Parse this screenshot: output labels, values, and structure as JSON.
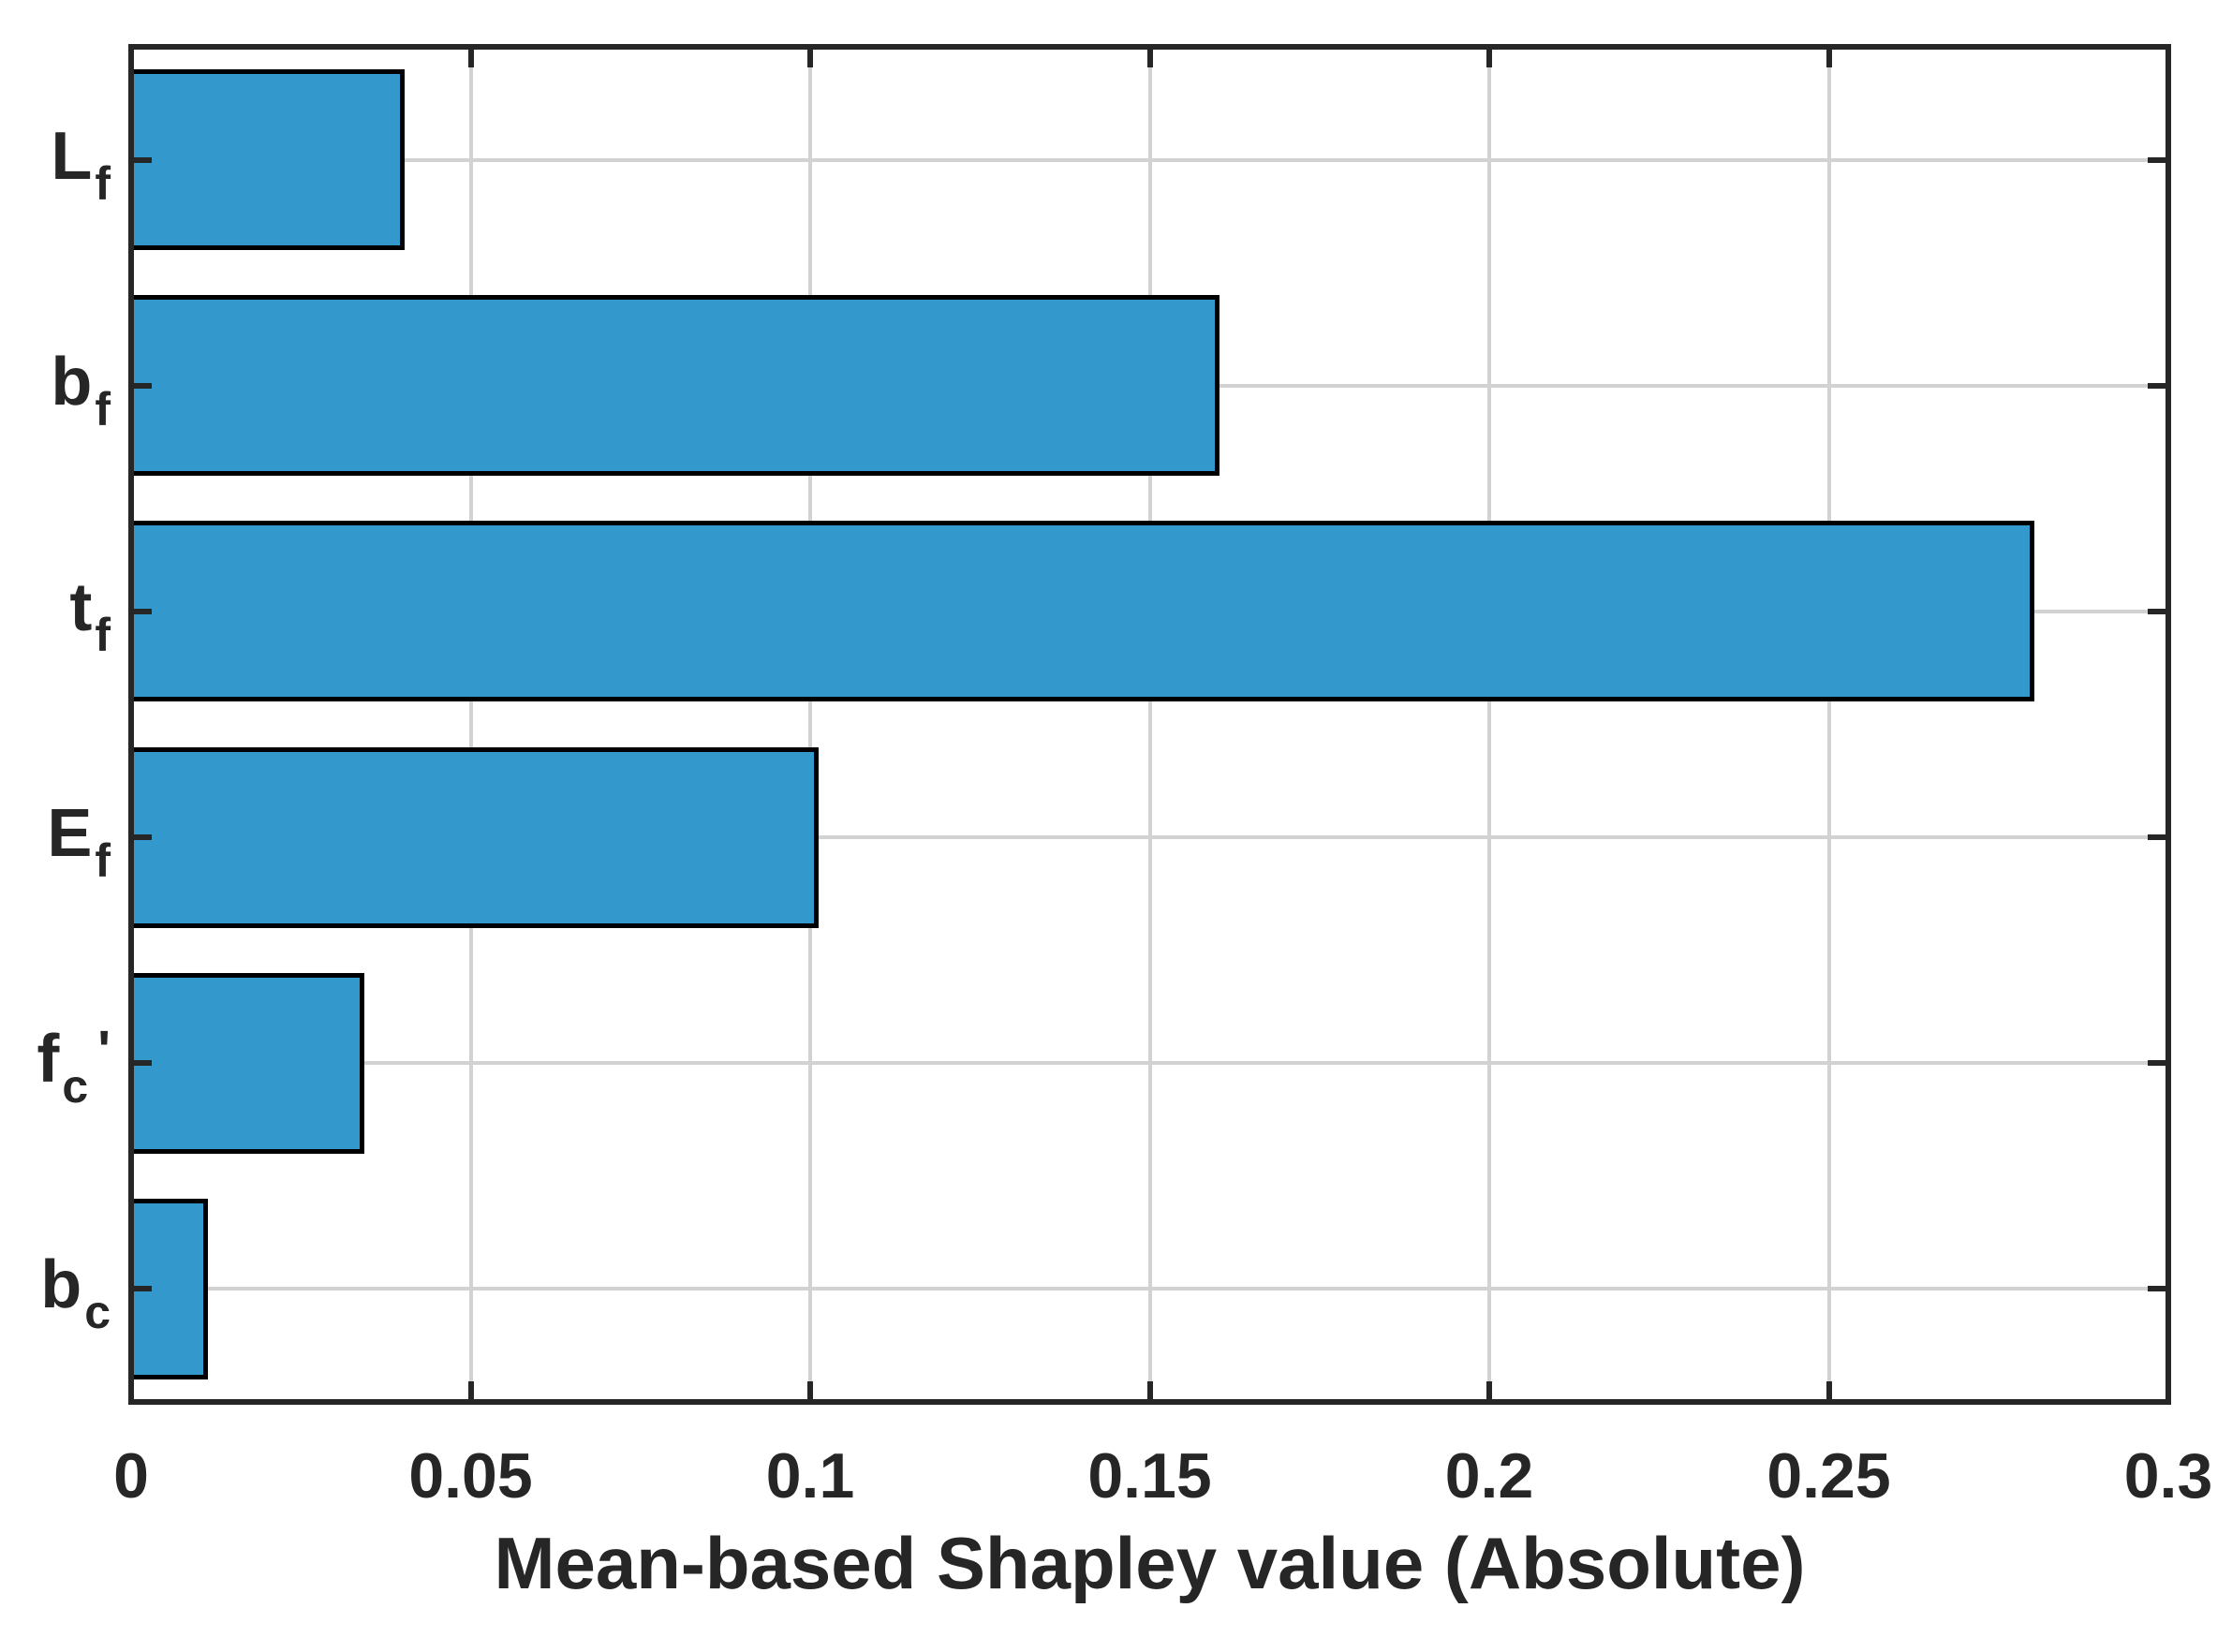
{
  "chart_data": {
    "type": "bar",
    "orientation": "horizontal",
    "title": "",
    "xlabel": "Mean-based Shapley value (Absolute)",
    "ylabel": "",
    "xlim": [
      0,
      0.3
    ],
    "xticks": [
      0,
      0.05,
      0.1,
      0.15,
      0.2,
      0.25,
      0.3
    ],
    "xtick_labels": [
      "0",
      "0.05",
      "0.1",
      "0.15",
      "0.2",
      "0.25",
      "0.3"
    ],
    "grid": true,
    "legend_position": "none",
    "categories": [
      {
        "id": "L_f",
        "base": "L",
        "sub": "f",
        "prime": ""
      },
      {
        "id": "b_f",
        "base": "b",
        "sub": "f",
        "prime": ""
      },
      {
        "id": "t_f",
        "base": "t",
        "sub": "f",
        "prime": ""
      },
      {
        "id": "E_f",
        "base": "E",
        "sub": "f",
        "prime": ""
      },
      {
        "id": "f_c_prime",
        "base": "f",
        "sub": "c",
        "prime": "'"
      },
      {
        "id": "b_c",
        "base": "b",
        "sub": "c",
        "prime": ""
      }
    ],
    "series": [
      {
        "name": "Mean-based Shapley value (Absolute)",
        "values": [
          0.04,
          0.16,
          0.28,
          0.101,
          0.034,
          0.011
        ]
      }
    ],
    "bar_width_fraction": 0.8
  },
  "style": {
    "bar_fill_color": "#3398CC",
    "bar_edge_color": "#000000",
    "axis_color": "#262626",
    "grid_color": "#D2D2D2",
    "background_color": "#FFFFFF",
    "text_color": "#262626"
  }
}
